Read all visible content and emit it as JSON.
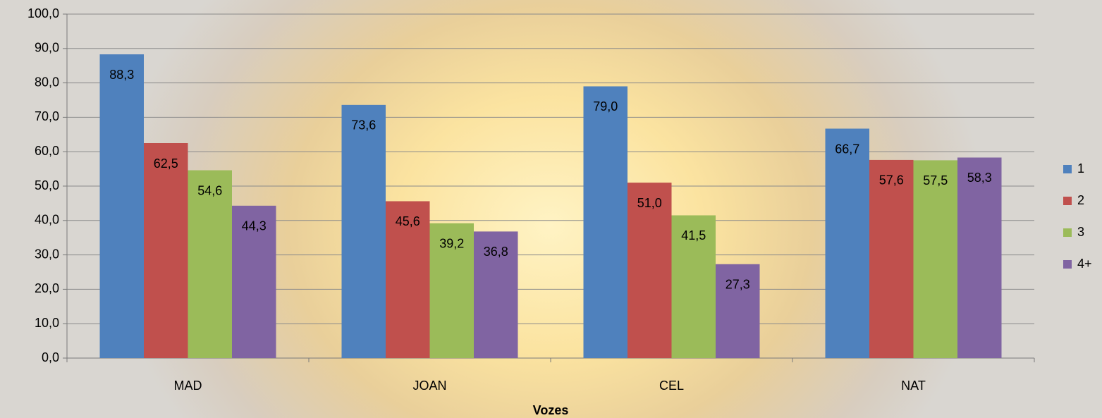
{
  "chart_data": {
    "type": "bar",
    "x_label": "Vozes",
    "categories": [
      "MAD",
      "JOAN",
      "CEL",
      "NAT"
    ],
    "series": [
      {
        "name": "1",
        "color": "#4f81bd",
        "values": [
          88.3,
          73.6,
          79.0,
          66.7
        ],
        "value_labels": [
          "88,3",
          "73,6",
          "79,0",
          "66,7"
        ]
      },
      {
        "name": "2",
        "color": "#c0504d",
        "values": [
          62.5,
          45.6,
          51.0,
          57.6
        ],
        "value_labels": [
          "62,5",
          "45,6",
          "51,0",
          "57,6"
        ]
      },
      {
        "name": "3",
        "color": "#9bbb59",
        "values": [
          54.6,
          39.2,
          41.5,
          57.5
        ],
        "value_labels": [
          "54,6",
          "39,2",
          "41,5",
          "57,5"
        ]
      },
      {
        "name": "4+",
        "color": "#8064a2",
        "values": [
          44.3,
          36.8,
          27.3,
          58.3
        ],
        "value_labels": [
          "44,3",
          "36,8",
          "27,3",
          "58,3"
        ]
      }
    ],
    "ylim": [
      0,
      100
    ],
    "yticks": [
      {
        "value": 0,
        "label": "0,0"
      },
      {
        "value": 10,
        "label": "10,0"
      },
      {
        "value": 20,
        "label": "20,0"
      },
      {
        "value": 30,
        "label": "30,0"
      },
      {
        "value": 40,
        "label": "40,0"
      },
      {
        "value": 50,
        "label": "50,0"
      },
      {
        "value": 60,
        "label": "60,0"
      },
      {
        "value": 70,
        "label": "70,0"
      },
      {
        "value": 80,
        "label": "80,0"
      },
      {
        "value": 90,
        "label": "90,0"
      },
      {
        "value": 100,
        "label": "100,0"
      }
    ],
    "grid": true,
    "legend": "right"
  }
}
